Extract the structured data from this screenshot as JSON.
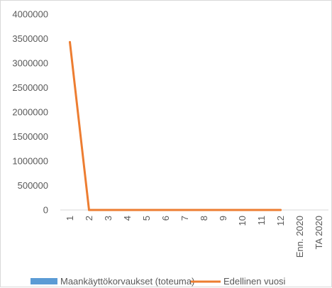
{
  "chart_data": {
    "type": "bar",
    "categories": [
      "1",
      "2",
      "3",
      "4",
      "5",
      "6",
      "7",
      "8",
      "9",
      "10",
      "11",
      "12",
      "Enn. 2020",
      "TA 2020"
    ],
    "ylim": [
      0,
      4000000
    ],
    "y_ticks": [
      "0",
      "500000",
      "1000000",
      "1500000",
      "2000000",
      "2500000",
      "3000000",
      "3500000",
      "4000000"
    ],
    "grid": false,
    "legend_position": "bottom",
    "series": [
      {
        "name": "Maankäyttökorvaukset (toteuma)",
        "type": "bar",
        "color": "#5B9BD5",
        "values": [
          null,
          null,
          null,
          null,
          null,
          null,
          null,
          null,
          null,
          null,
          null,
          null,
          null,
          null
        ]
      },
      {
        "name": "Edellinen vuosi",
        "type": "line",
        "color": "#ED7D31",
        "values": [
          3430000,
          0,
          0,
          0,
          0,
          0,
          0,
          0,
          0,
          0,
          0,
          0,
          null,
          null
        ]
      }
    ]
  }
}
